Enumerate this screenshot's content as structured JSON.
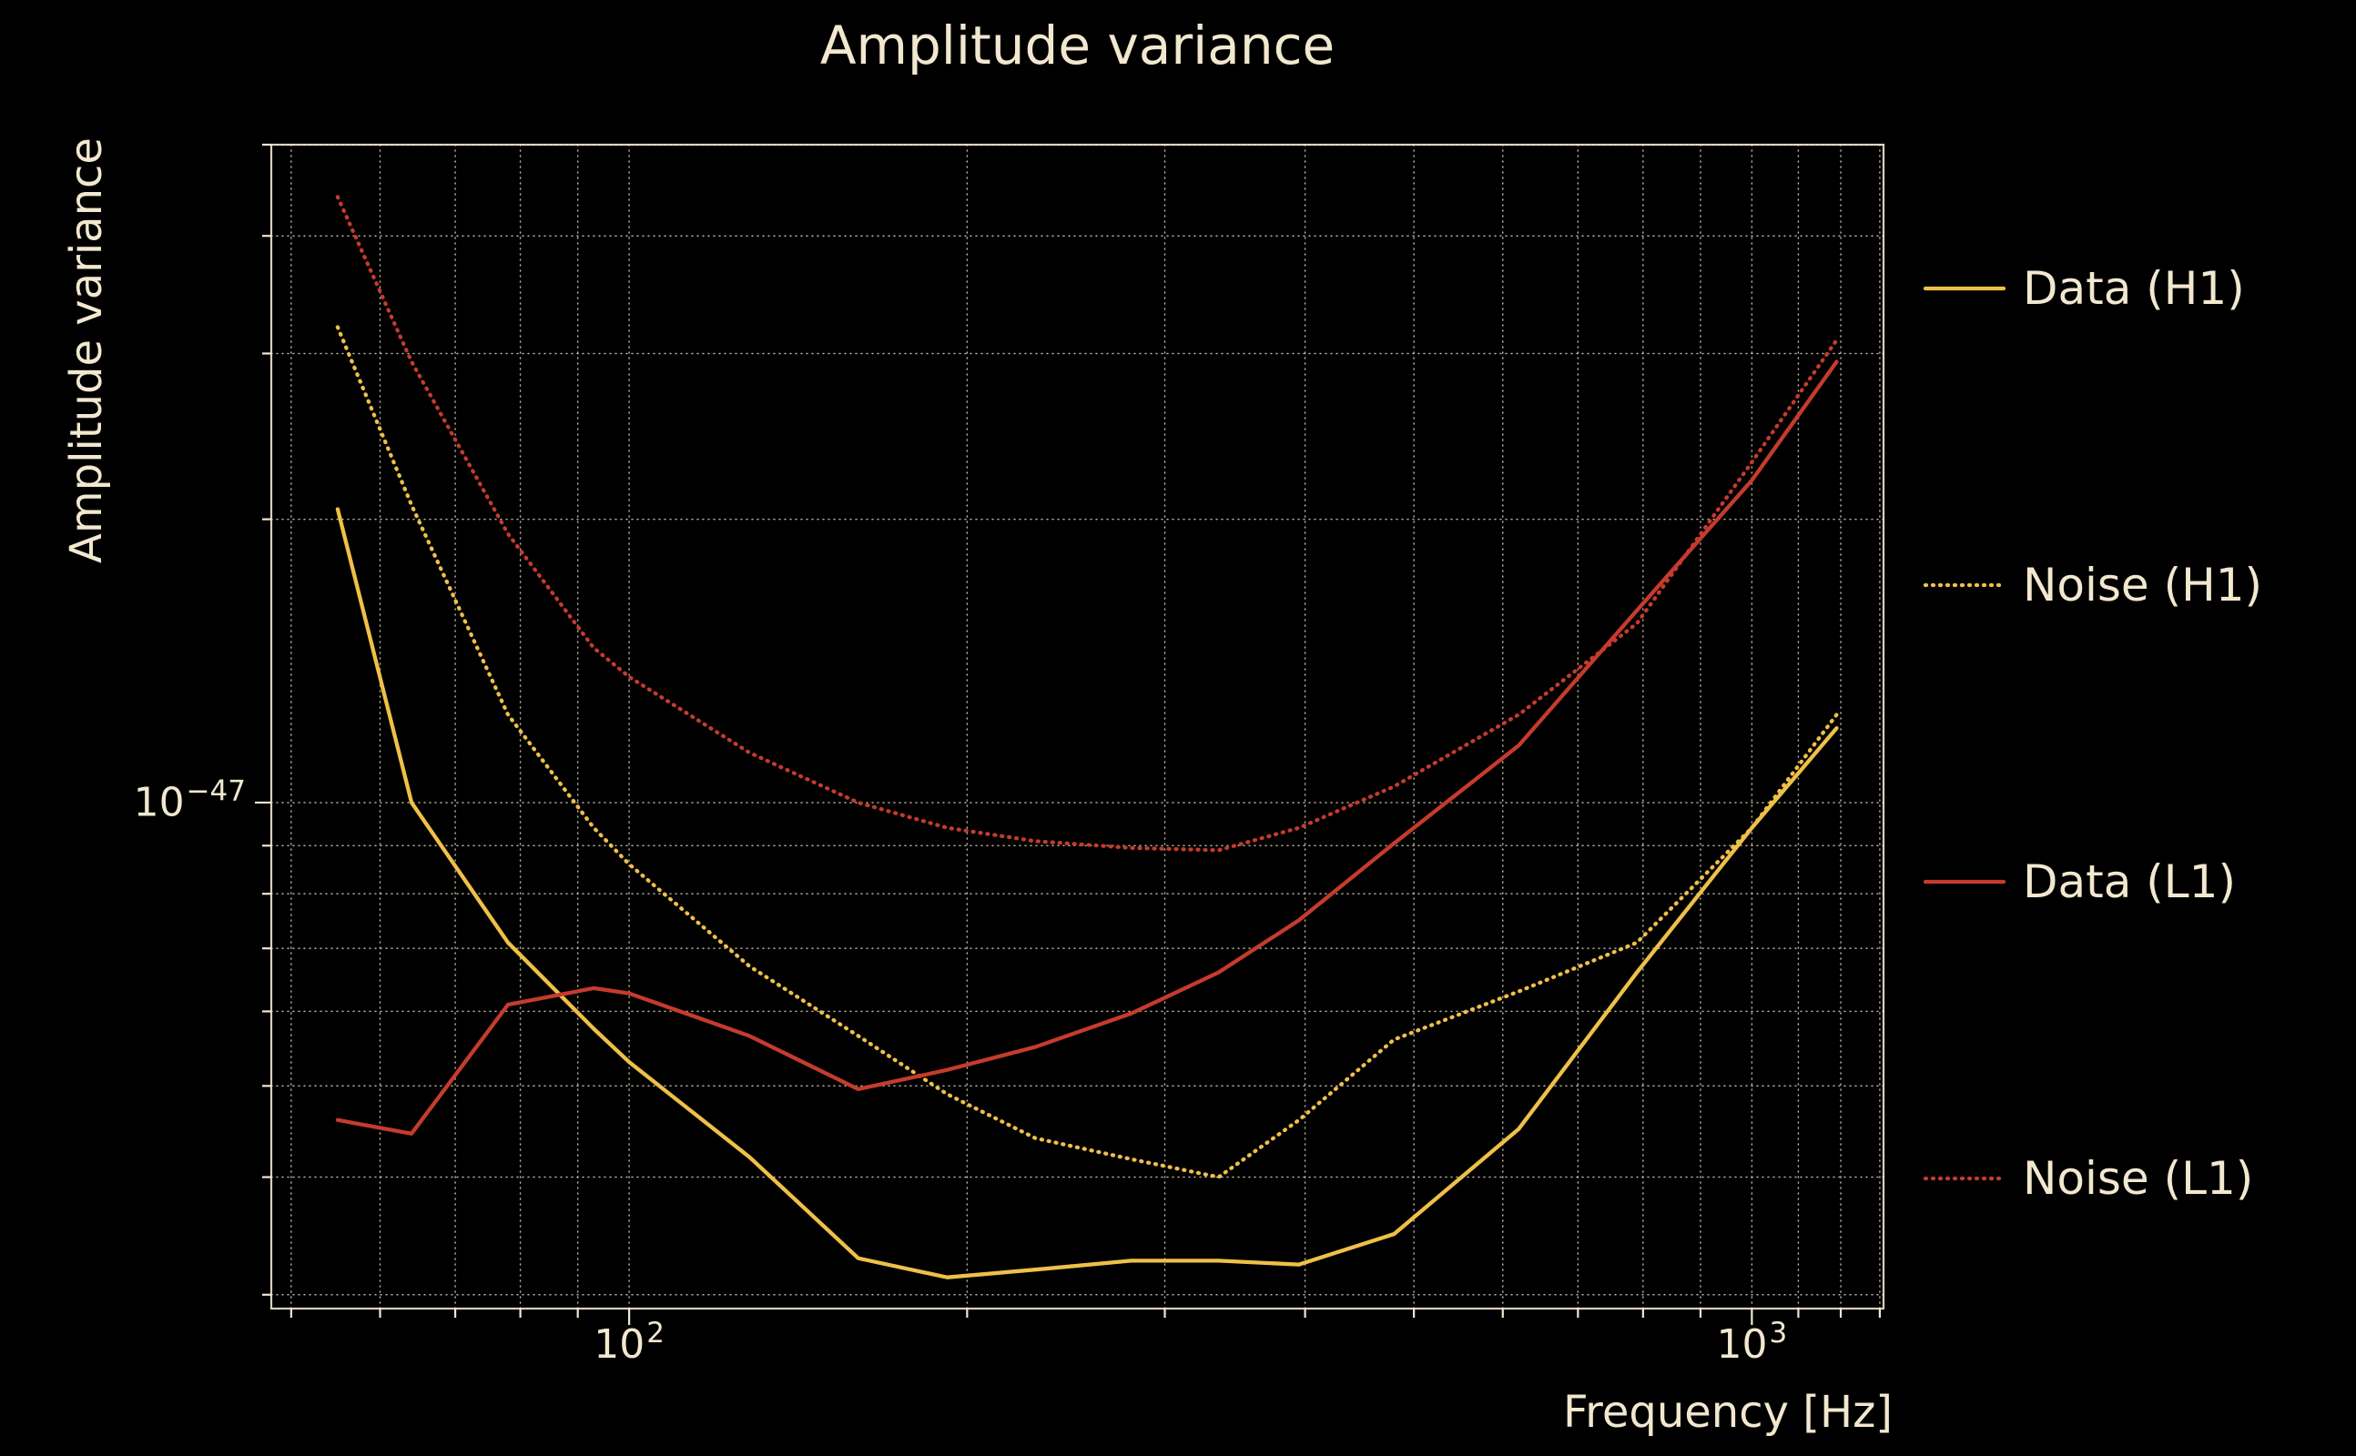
{
  "colors": {
    "background": "#000000",
    "text": "#f2e8cf",
    "grid": "#f2e8cf",
    "h1_gold": "#efc048",
    "l1_red": "#c53b2d"
  },
  "chart_data": {
    "type": "line",
    "title": "Amplitude variance",
    "xlabel": "Frequency [Hz]",
    "ylabel": "Amplitude variance",
    "xscale": "log",
    "yscale": "log",
    "xlim": [
      48,
      1310
    ],
    "ylim": [
      2.9e-48,
      5e-47
    ],
    "grid": true,
    "legend_position": "right-outside",
    "x": [
      55,
      64,
      78,
      93,
      100,
      128,
      160,
      192,
      230,
      280,
      335,
      395,
      480,
      620,
      790,
      1000,
      1190
    ],
    "series": [
      {
        "name": "Data (H1)",
        "color": "#efc048",
        "style": "solid",
        "values": [
          2.05e-47,
          1e-47,
          7.1e-48,
          5.75e-48,
          5.3e-48,
          4.2e-48,
          3.28e-48,
          3.13e-48,
          3.19e-48,
          3.26e-48,
          3.26e-48,
          3.23e-48,
          3.48e-48,
          4.5e-48,
          6.6e-48,
          9.4e-48,
          1.2e-47
        ]
      },
      {
        "name": "Noise (H1)",
        "color": "#efc048",
        "style": "dotted",
        "values": [
          3.2e-47,
          2.07e-47,
          1.24e-47,
          9.4e-48,
          8.6e-48,
          6.7e-48,
          5.65e-48,
          4.9e-48,
          4.4e-48,
          4.18e-48,
          4e-48,
          4.6e-48,
          5.6e-48,
          6.3e-48,
          7.1e-48,
          9.4e-48,
          1.24e-47
        ]
      },
      {
        "name": "Data (L1)",
        "color": "#c53b2d",
        "style": "solid",
        "values": [
          4.6e-48,
          4.45e-48,
          6.1e-48,
          6.35e-48,
          6.27e-48,
          5.65e-48,
          4.96e-48,
          5.2e-48,
          5.5e-48,
          5.97e-48,
          6.6e-48,
          7.5e-48,
          9.05e-48,
          1.15e-47,
          1.6e-47,
          2.2e-47,
          2.94e-47
        ]
      },
      {
        "name": "Noise (L1)",
        "color": "#c53b2d",
        "style": "dotted",
        "values": [
          4.4e-47,
          2.94e-47,
          1.93e-47,
          1.46e-47,
          1.36e-47,
          1.13e-47,
          1e-47,
          9.4e-48,
          9.1e-48,
          8.95e-48,
          8.9e-48,
          9.4e-48,
          1.04e-47,
          1.24e-47,
          1.55e-47,
          2.3e-47,
          3.1e-47
        ]
      }
    ],
    "xticks": [
      {
        "value": 100,
        "base": "10",
        "exp": "2"
      },
      {
        "value": 1000,
        "base": "10",
        "exp": "3"
      }
    ],
    "yticks": [
      {
        "value": 1e-47,
        "base": "10",
        "exp": "−47"
      }
    ]
  }
}
